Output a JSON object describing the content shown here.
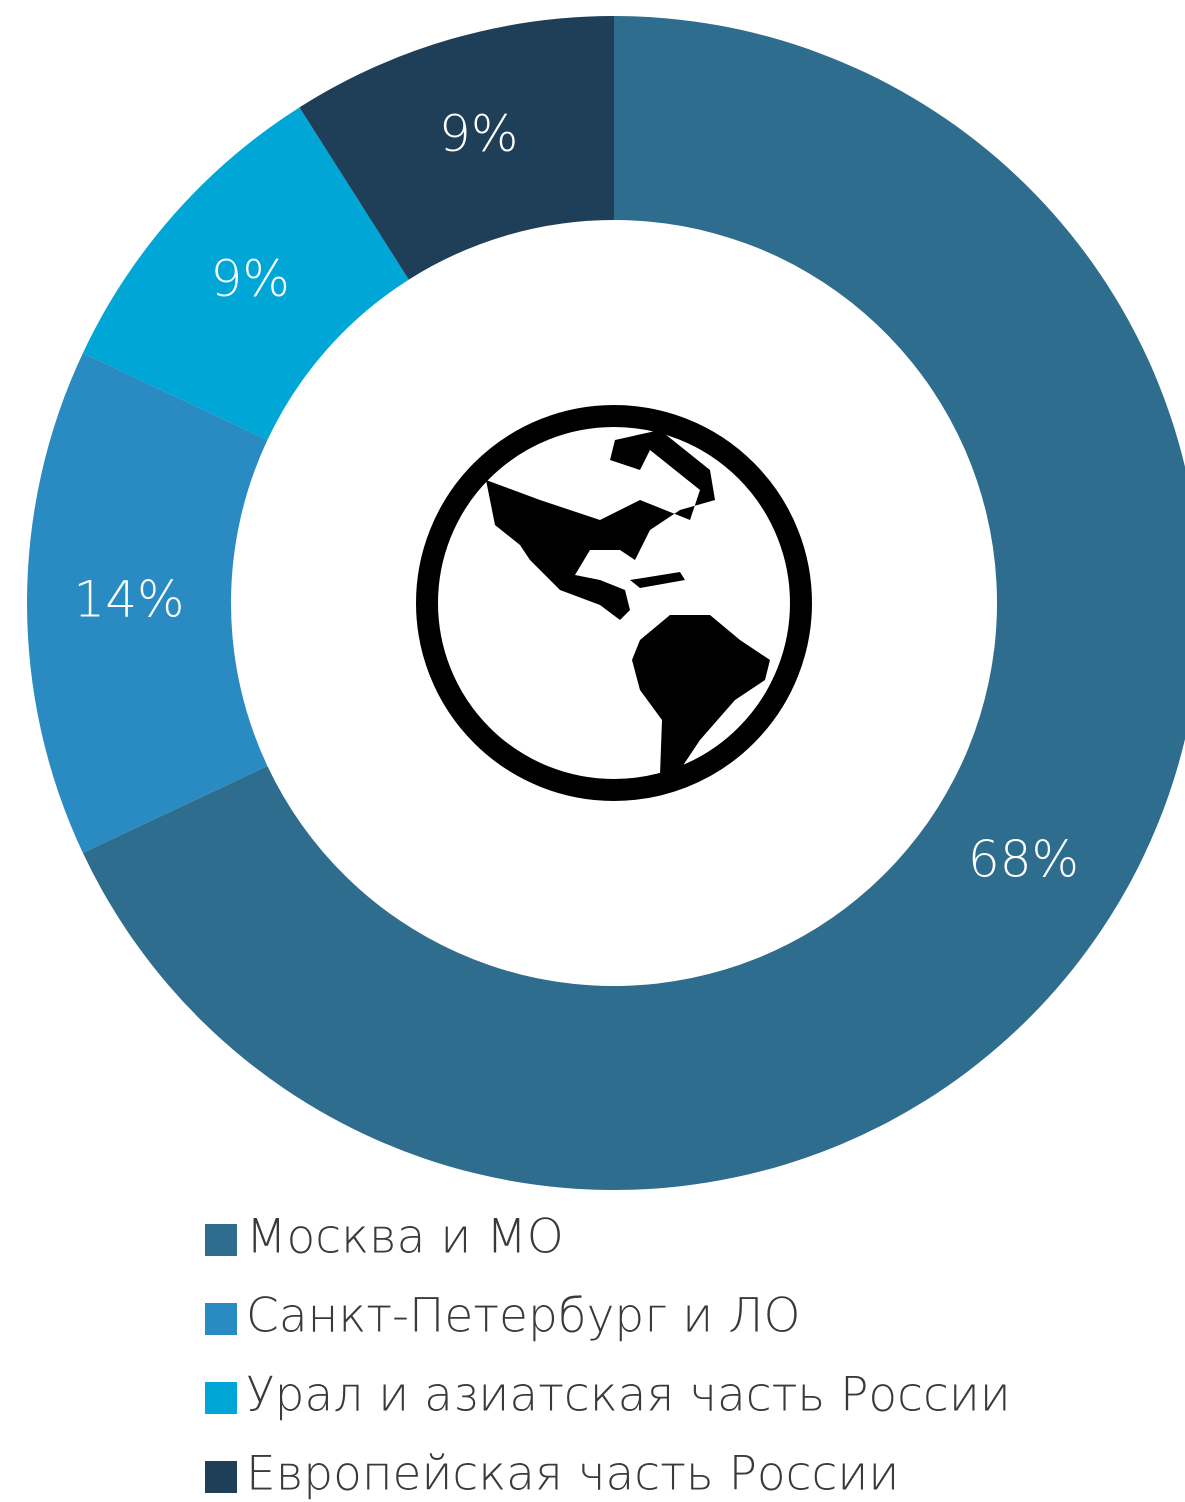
{
  "chart_data": {
    "type": "donut",
    "categories": [
      "Москва и МО",
      "Санкт-Петербург и ЛО",
      "Урал и азиатская часть России",
      "Европейская часть России"
    ],
    "values": [
      68,
      14,
      9,
      9
    ],
    "value_labels": [
      "68%",
      "14%",
      "9%",
      "9%"
    ],
    "colors": [
      "#2e6d8e",
      "#2a8bc2",
      "#00a6d6",
      "#1e3f57"
    ],
    "legend": "bottom"
  }
}
